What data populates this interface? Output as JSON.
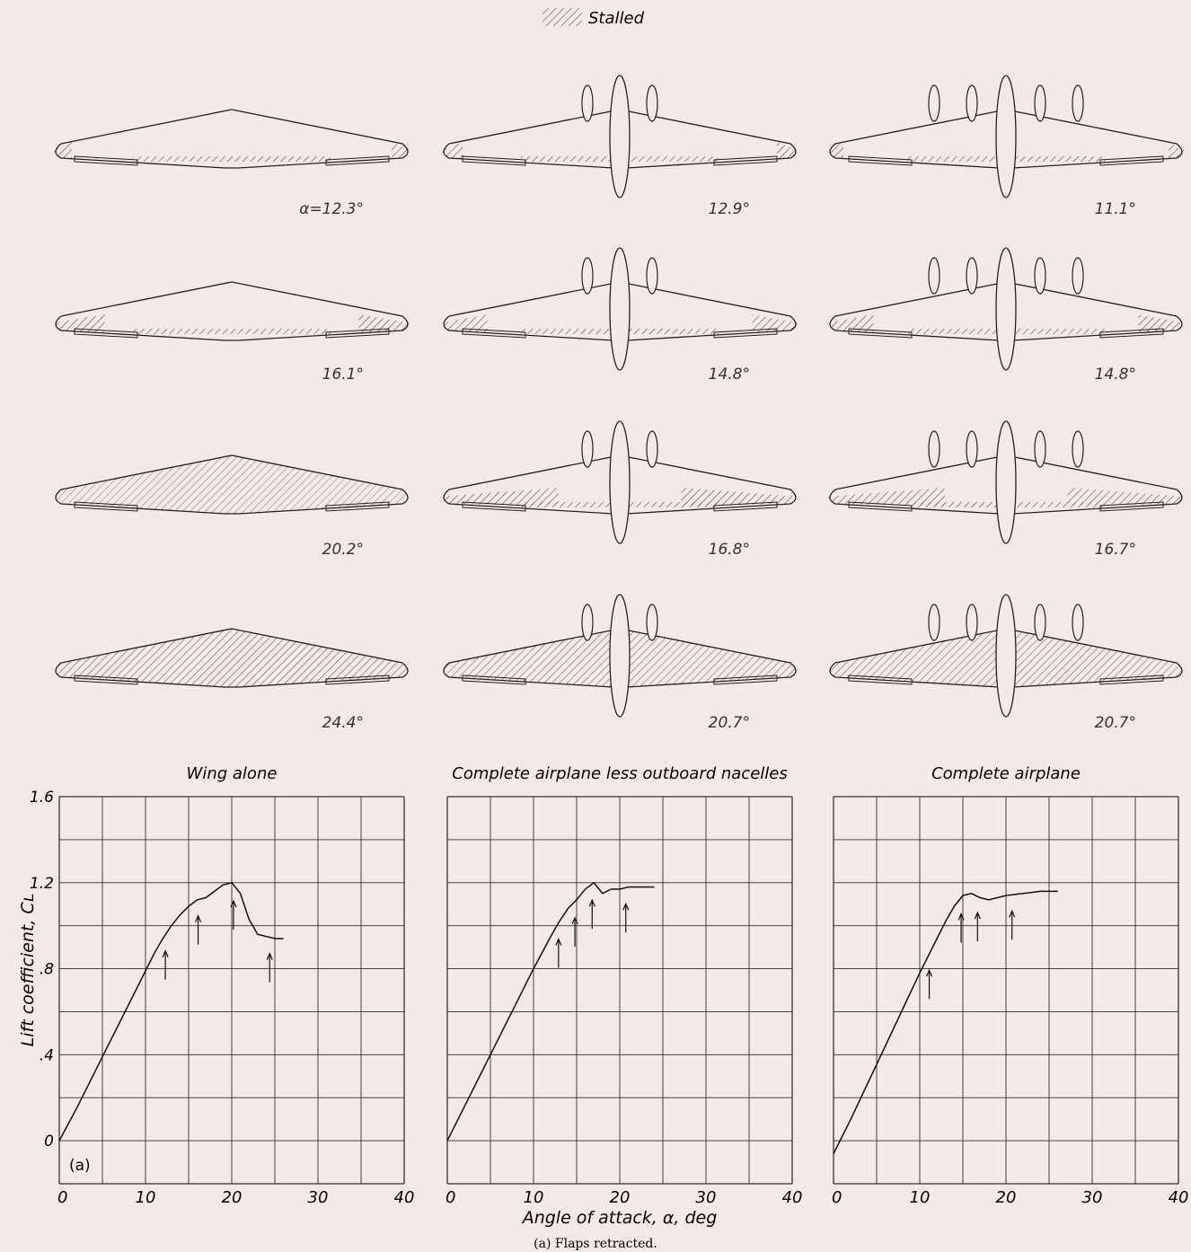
{
  "legend": {
    "stalled_label": "Stalled"
  },
  "caption": "(a) Flaps retracted.",
  "panel_tag": "(a)",
  "xlabel": "Angle of attack, α, deg",
  "ylabel": "Lift coefficient, Cʟ",
  "columns": [
    {
      "title": "Wing alone",
      "sketch_labels": [
        "α=12.3°",
        "16.1°",
        "20.2°",
        "24.4°"
      ]
    },
    {
      "title": "Complete airplane less outboard nacelles",
      "sketch_labels": [
        "12.9°",
        "14.8°",
        "16.8°",
        "20.7°"
      ]
    },
    {
      "title": "Complete airplane",
      "sketch_labels": [
        "11.1°",
        "14.8°",
        "16.7°",
        "20.7°"
      ]
    }
  ],
  "chart_data": [
    {
      "type": "line",
      "title": "Wing alone",
      "xlabel": "Angle of attack, α, deg",
      "ylabel": "Lift coefficient, Cʟ",
      "xlim": [
        0,
        40
      ],
      "ylim": [
        -0.2,
        1.6
      ],
      "xticks": [
        "0",
        "10",
        "20",
        "30",
        "40"
      ],
      "yticks": [
        "0",
        ".4",
        ".8",
        "1.2",
        "1.6"
      ],
      "grid": true,
      "x": [
        0,
        2,
        4,
        6,
        8,
        10,
        11,
        12,
        13,
        14,
        15,
        16,
        17,
        18,
        19,
        20,
        21,
        22,
        23,
        24,
        25,
        26
      ],
      "y": [
        0,
        0.15,
        0.31,
        0.47,
        0.63,
        0.79,
        0.87,
        0.94,
        1.0,
        1.05,
        1.09,
        1.12,
        1.13,
        1.16,
        1.19,
        1.2,
        1.15,
        1.03,
        0.96,
        0.95,
        0.94,
        0.94
      ],
      "stall_arrows_at_alpha": [
        12.3,
        16.1,
        20.2,
        24.4
      ]
    },
    {
      "type": "line",
      "title": "Complete airplane less outboard nacelles",
      "xlabel": "Angle of attack, α, deg",
      "xlim": [
        0,
        40
      ],
      "ylim": [
        -0.2,
        1.6
      ],
      "xticks": [
        "0",
        "10",
        "20",
        "30",
        "40"
      ],
      "grid": true,
      "x": [
        0,
        2,
        4,
        6,
        8,
        10,
        12,
        13,
        14,
        15,
        16,
        17,
        18,
        19,
        20,
        21,
        22,
        23,
        24
      ],
      "y": [
        0,
        0.16,
        0.32,
        0.48,
        0.64,
        0.8,
        0.95,
        1.02,
        1.08,
        1.12,
        1.17,
        1.2,
        1.15,
        1.17,
        1.17,
        1.18,
        1.18,
        1.18,
        1.18
      ],
      "stall_arrows_at_alpha": [
        12.9,
        14.8,
        16.8,
        20.7
      ]
    },
    {
      "type": "line",
      "title": "Complete airplane",
      "xlabel": "Angle of attack, α, deg",
      "xlim": [
        0,
        40
      ],
      "ylim": [
        -0.2,
        1.6
      ],
      "xticks": [
        "0",
        "10",
        "20",
        "30",
        "40"
      ],
      "grid": true,
      "x": [
        0,
        2,
        4,
        6,
        8,
        10,
        12,
        13,
        14,
        15,
        16,
        17,
        18,
        19,
        20,
        22,
        24,
        26
      ],
      "y": [
        -0.06,
        0.1,
        0.27,
        0.44,
        0.61,
        0.78,
        0.94,
        1.02,
        1.09,
        1.14,
        1.15,
        1.13,
        1.12,
        1.13,
        1.14,
        1.15,
        1.16,
        1.16
      ],
      "stall_arrows_at_alpha": [
        11.1,
        14.8,
        16.7,
        20.7
      ]
    }
  ]
}
